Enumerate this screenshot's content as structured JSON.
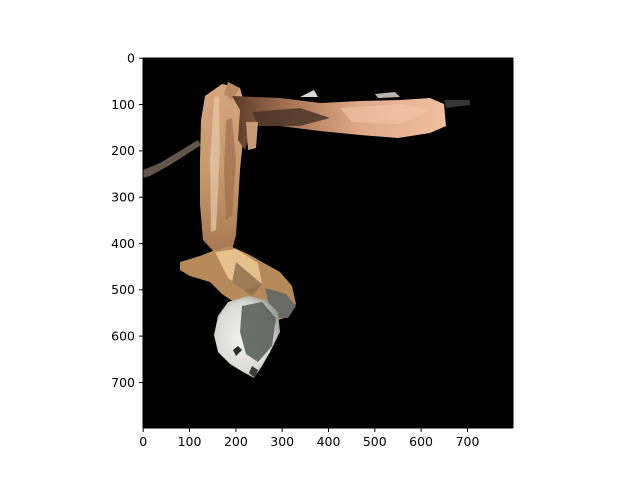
{
  "figure": {
    "background": "#ffffff",
    "image_background": "#000000",
    "axes": {
      "xlim": [
        0,
        800
      ],
      "ylim": [
        800,
        0
      ],
      "y_inverted": true,
      "grid": false,
      "x_ticks": [
        "0",
        "100",
        "200",
        "300",
        "400",
        "500",
        "600",
        "700"
      ],
      "y_ticks": [
        "0",
        "100",
        "200",
        "300",
        "400",
        "500",
        "600",
        "700"
      ]
    }
  }
}
